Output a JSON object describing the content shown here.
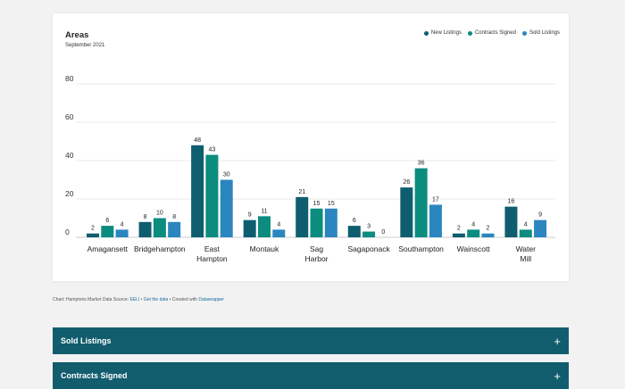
{
  "chart_data": {
    "type": "bar",
    "title": "Areas",
    "subtitle": "September 2021",
    "categories": [
      "Amagansett",
      "Bridgehampton",
      "East Hampton",
      "Montauk",
      "Sag Harbor",
      "Sagaponack",
      "Southampton",
      "Wainscott",
      "Water Mill"
    ],
    "category_lines": [
      [
        "Amagansett"
      ],
      [
        "Bridgehampton"
      ],
      [
        "East",
        "Hampton"
      ],
      [
        "Montauk"
      ],
      [
        "Sag",
        "Harbor"
      ],
      [
        "Sagaponack"
      ],
      [
        "Southampton"
      ],
      [
        "Wainscott"
      ],
      [
        "Water",
        "Mill"
      ]
    ],
    "series": [
      {
        "name": "New Listings",
        "color": "#0e5e6f",
        "values": [
          2,
          8,
          48,
          9,
          21,
          6,
          26,
          2,
          16
        ]
      },
      {
        "name": "Contracts Signed",
        "color": "#0b8c7f",
        "values": [
          6,
          10,
          43,
          11,
          15,
          3,
          36,
          4,
          4
        ]
      },
      {
        "name": "Sold Listings",
        "color": "#2b86c0",
        "values": [
          4,
          8,
          30,
          4,
          15,
          0,
          17,
          2,
          9
        ]
      }
    ],
    "ylim": [
      0,
      80
    ],
    "yticks": [
      0,
      20,
      40,
      60,
      80
    ],
    "legend": "top-right",
    "grid": true
  },
  "footer": {
    "prefix": "Chart: Hamptons Market Data Source: ",
    "source_link": "EELI",
    "sep1": " • ",
    "get_data": "Get the data",
    "sep2": " • Created with ",
    "tool": "Datawrapper"
  },
  "accordions": [
    {
      "label": "Sold Listings",
      "icon": "plus-icon",
      "symbol": "+"
    },
    {
      "label": "Contracts Signed",
      "icon": "plus-icon",
      "symbol": "+"
    }
  ]
}
